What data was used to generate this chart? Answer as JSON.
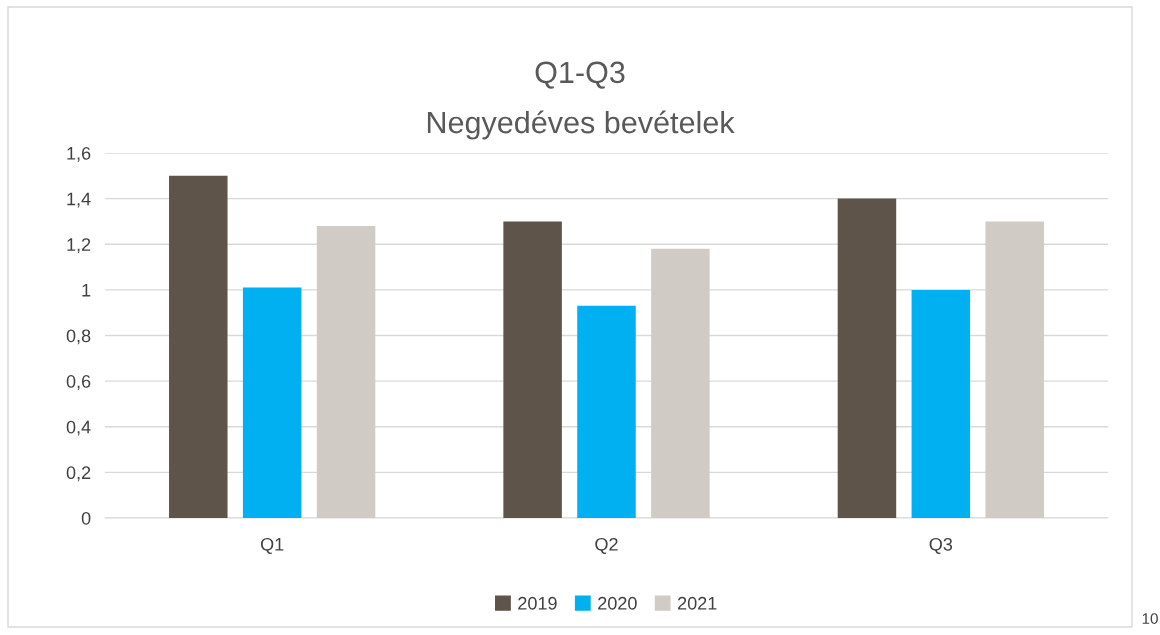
{
  "chart_data": {
    "type": "bar",
    "title": "Q1-Q3",
    "subtitle": "Negyedéves bevételek",
    "categories": [
      "Q1",
      "Q2",
      "Q3"
    ],
    "series": [
      {
        "name": "2019",
        "color": "#5f5449",
        "values": [
          1.5,
          1.3,
          1.4
        ]
      },
      {
        "name": "2020",
        "color": "#00b0f0",
        "values": [
          1.01,
          0.93,
          1.0
        ]
      },
      {
        "name": "2021",
        "color": "#d0cbc5",
        "values": [
          1.28,
          1.18,
          1.3
        ]
      }
    ],
    "ylim": [
      0,
      1.6
    ],
    "yticks": [
      0,
      {
        "value": 0.2,
        "label": "0,2"
      },
      {
        "value": 0.4,
        "label": "0,4"
      },
      {
        "value": 0.6,
        "label": "0,6"
      },
      {
        "value": 0.8,
        "label": "0,8"
      },
      1,
      {
        "value": 1.2,
        "label": "1,2"
      },
      {
        "value": 1.4,
        "label": "1,4"
      },
      {
        "value": 1.6,
        "label": "1,6"
      }
    ],
    "grid": "y",
    "legend": "bottom",
    "annotations": [
      "10"
    ]
  }
}
